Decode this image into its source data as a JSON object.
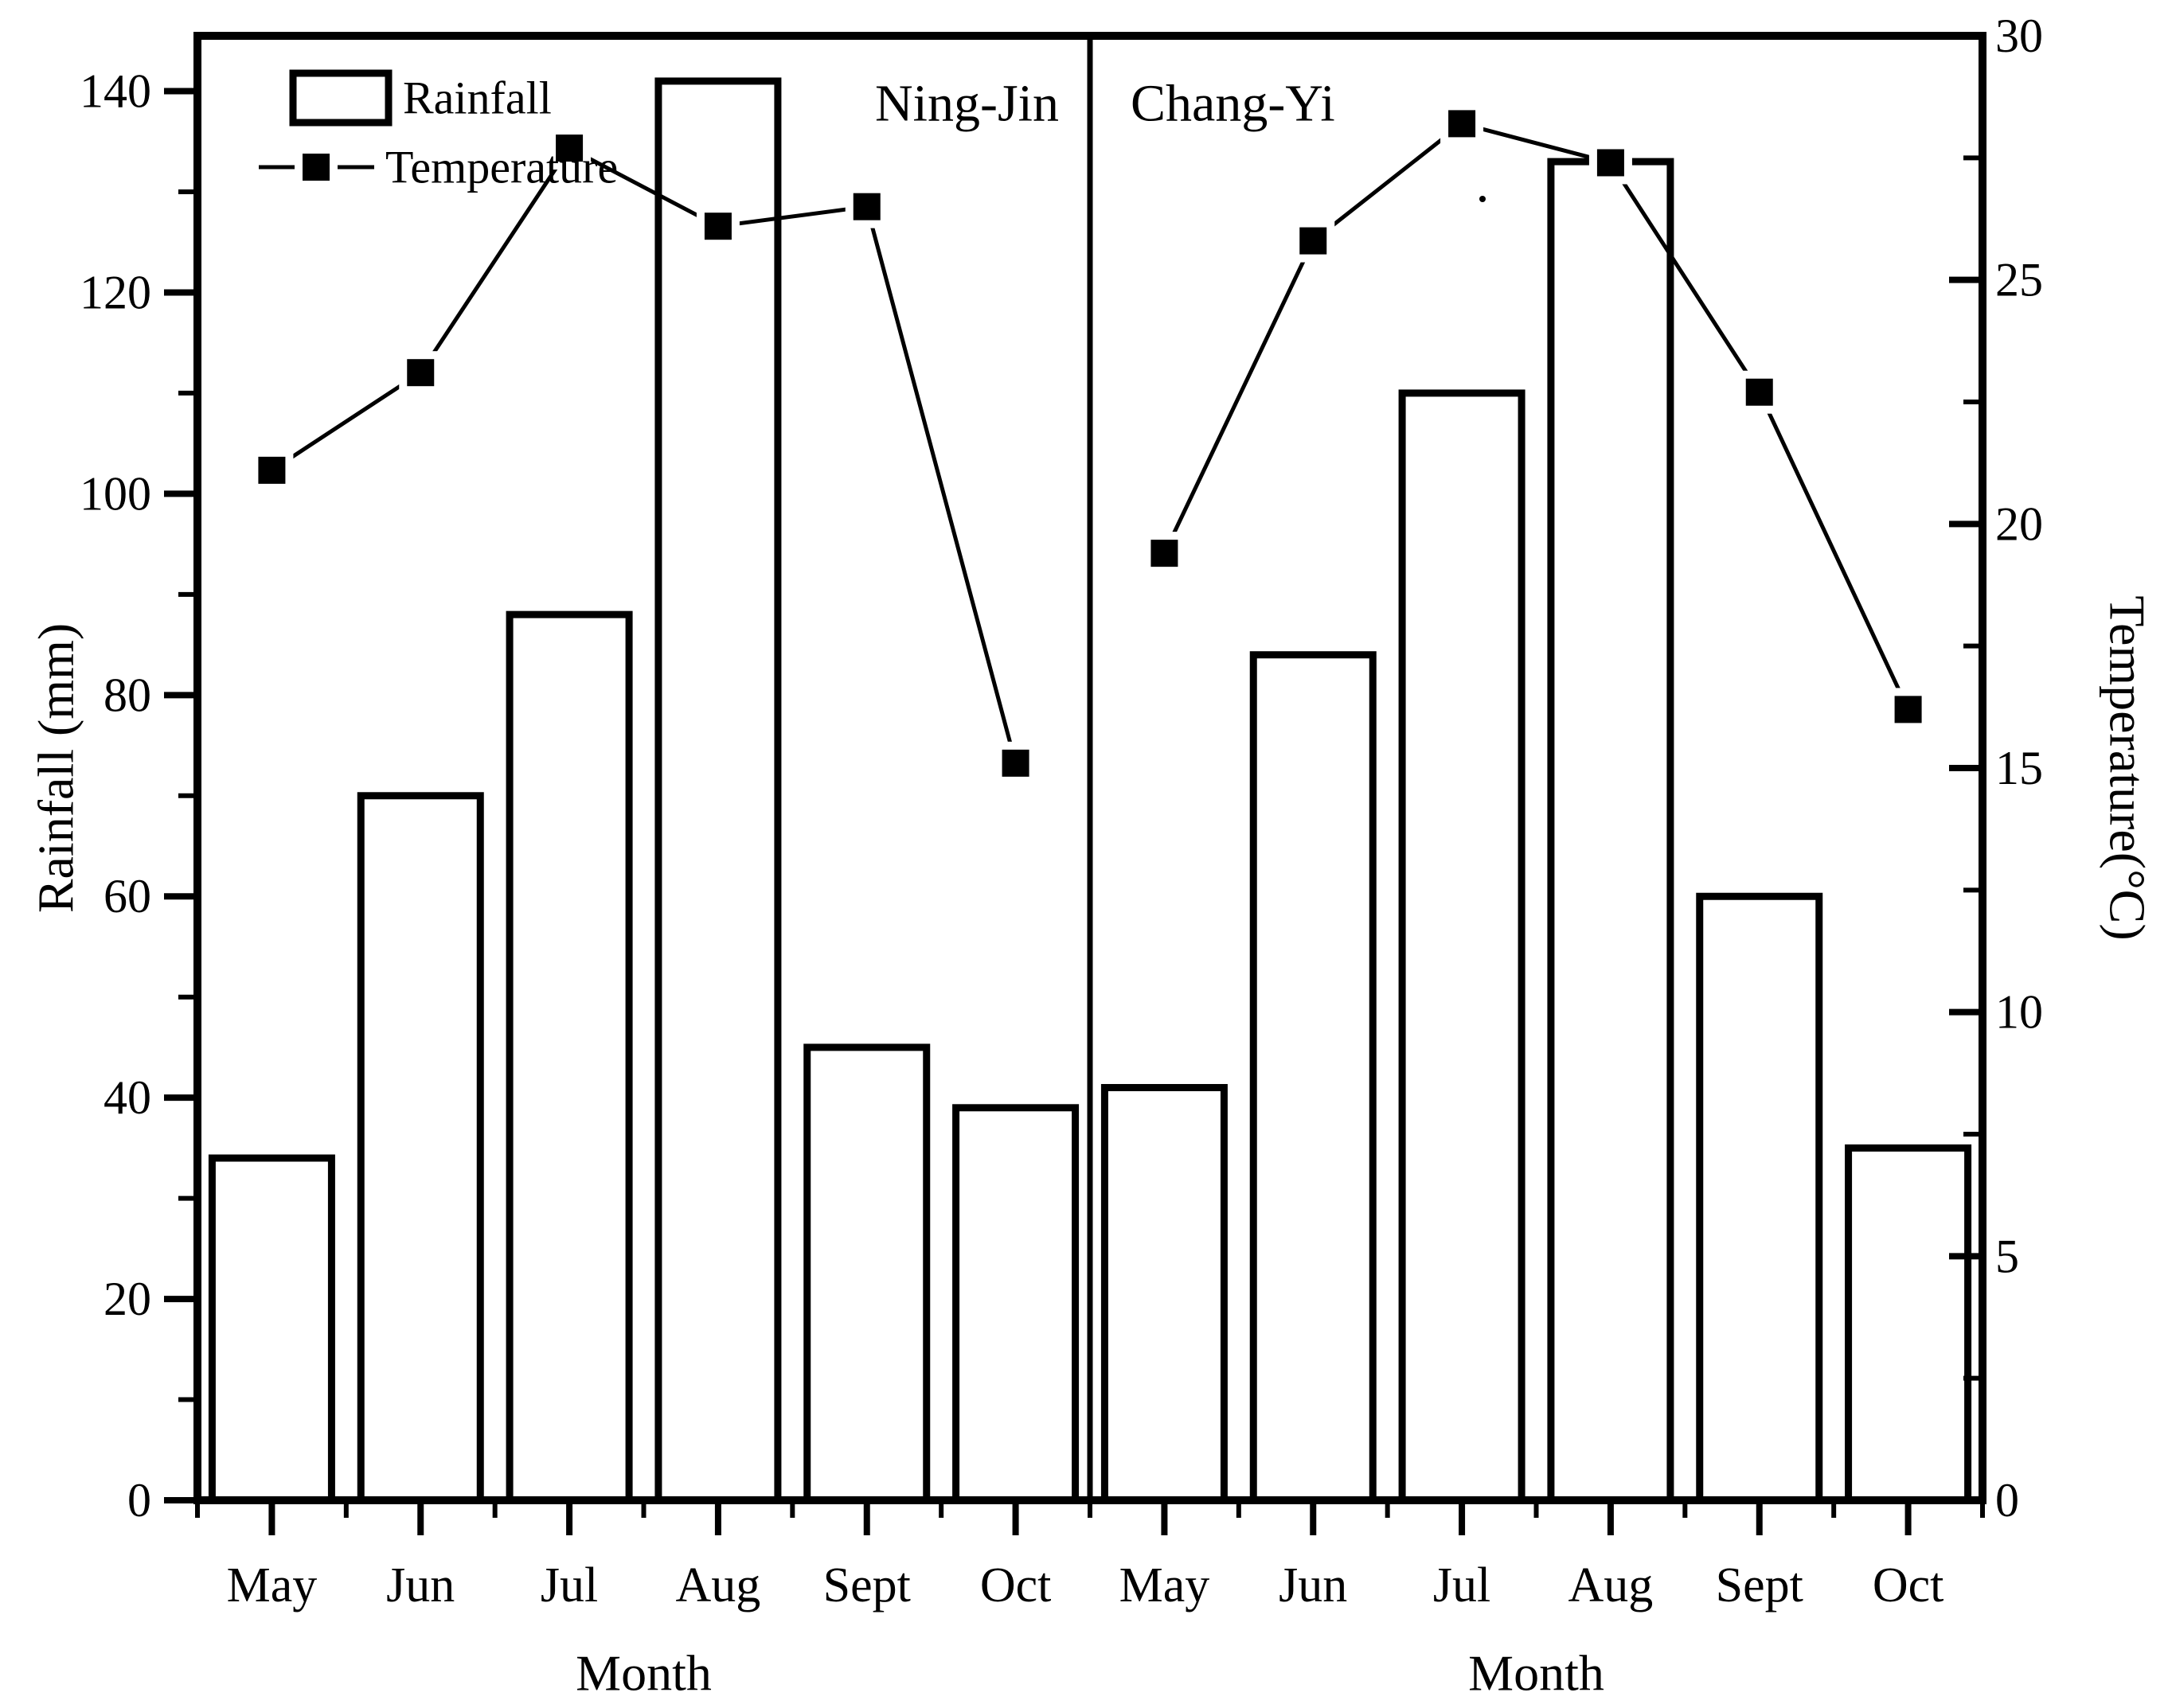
{
  "figure": {
    "background": "#ffffff",
    "ink": "#000000",
    "legend": {
      "rainfall_label": "Rainfall",
      "temperature_label": "Temperature"
    },
    "panels": [
      {
        "title": "Ning-Jin",
        "xlabel": "Month"
      },
      {
        "title": "Chang-Yi",
        "xlabel": "Month"
      }
    ],
    "months": [
      "May",
      "Jun",
      "Jul",
      "Aug",
      "Sept",
      "Oct"
    ],
    "left_axis": {
      "title": "Rainfall (mm)",
      "ticks": [
        0,
        20,
        40,
        60,
        80,
        100,
        120,
        140
      ],
      "minor_step": 10
    },
    "right_axis": {
      "title": "Temperature(°C)",
      "ticks": [
        0,
        5,
        10,
        15,
        20,
        25,
        30
      ],
      "minor_step": 2.5
    }
  },
  "chart_data": [
    {
      "type": "bar",
      "panel": "Ning-Jin",
      "categories": [
        "May",
        "Jun",
        "Jul",
        "Aug",
        "Sept",
        "Oct"
      ],
      "series": [
        {
          "name": "Rainfall",
          "type": "bar",
          "axis": "left",
          "values": [
            34,
            70,
            88,
            141,
            45,
            39
          ]
        },
        {
          "name": "Temperature",
          "type": "line",
          "axis": "right",
          "values": [
            21.1,
            23.1,
            27.7,
            26.1,
            26.5,
            15.1
          ]
        }
      ],
      "title": "Ning-Jin",
      "xlabel": "Month",
      "ylabel_left": "Rainfall (mm)",
      "ylabel_right": "Temperature(°C)",
      "ylim_left": [
        0,
        145.5
      ],
      "ylim_right": [
        0,
        30
      ],
      "grid": false,
      "legend_position": "top-left"
    },
    {
      "type": "bar",
      "panel": "Chang-Yi",
      "categories": [
        "May",
        "Jun",
        "Jul",
        "Aug",
        "Sept",
        "Oct"
      ],
      "series": [
        {
          "name": "Rainfall",
          "type": "bar",
          "axis": "left",
          "values": [
            41,
            84,
            110,
            133,
            60,
            35
          ]
        },
        {
          "name": "Temperature",
          "type": "line",
          "axis": "right",
          "values": [
            19.4,
            25.8,
            28.2,
            27.4,
            22.7,
            16.2
          ]
        }
      ],
      "title": "Chang-Yi",
      "xlabel": "Month",
      "ylabel_left": "Rainfall (mm)",
      "ylabel_right": "Temperature(°C)",
      "ylim_left": [
        0,
        145.5
      ],
      "ylim_right": [
        0,
        30
      ],
      "grid": false,
      "legend_position": "none"
    }
  ]
}
